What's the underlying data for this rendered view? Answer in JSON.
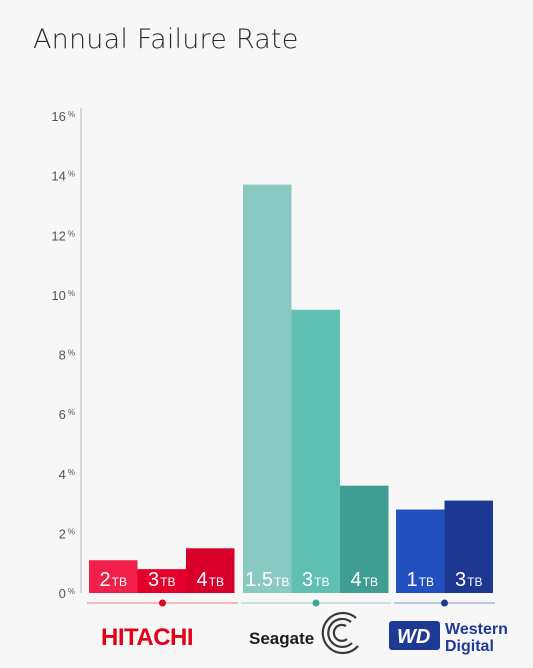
{
  "title": "Annual Failure Rate",
  "chart_data": {
    "type": "bar",
    "title": "Annual Failure Rate",
    "ylim": [
      0,
      16
    ],
    "yticks": [
      0,
      2,
      4,
      6,
      8,
      10,
      12,
      14,
      16
    ],
    "ytick_suffix": "%",
    "grid": false,
    "groups": [
      {
        "brand": "HITACHI",
        "color": "#e2001a",
        "bars": [
          {
            "num": "2",
            "unit": "TB",
            "value": 1.1,
            "color": "#f0204a"
          },
          {
            "num": "3",
            "unit": "TB",
            "value": 0.8,
            "color": "#e4002b"
          },
          {
            "num": "4",
            "unit": "TB",
            "value": 1.5,
            "color": "#d8002a"
          }
        ]
      },
      {
        "brand": "Seagate",
        "color": "#3aa89a",
        "bars": [
          {
            "num": "1.5",
            "unit": "TB",
            "value": 13.7,
            "color": "#8ac8c2"
          },
          {
            "num": "3",
            "unit": "TB",
            "value": 9.5,
            "color": "#5fbfb1"
          },
          {
            "num": "4",
            "unit": "TB",
            "value": 3.6,
            "color": "#3f9e91"
          }
        ]
      },
      {
        "brand": "Western Digital",
        "color": "#1f3a93",
        "bars": [
          {
            "num": "1",
            "unit": "TB",
            "value": 2.8,
            "color": "#2350c0"
          },
          {
            "num": "3",
            "unit": "TB",
            "value": 3.1,
            "color": "#1c3890"
          }
        ]
      }
    ]
  },
  "logos": {
    "hitachi": "HITACHI",
    "seagate": "Seagate",
    "wd_badge": "WD",
    "wd_line1": "Western",
    "wd_line2": "Digital"
  }
}
